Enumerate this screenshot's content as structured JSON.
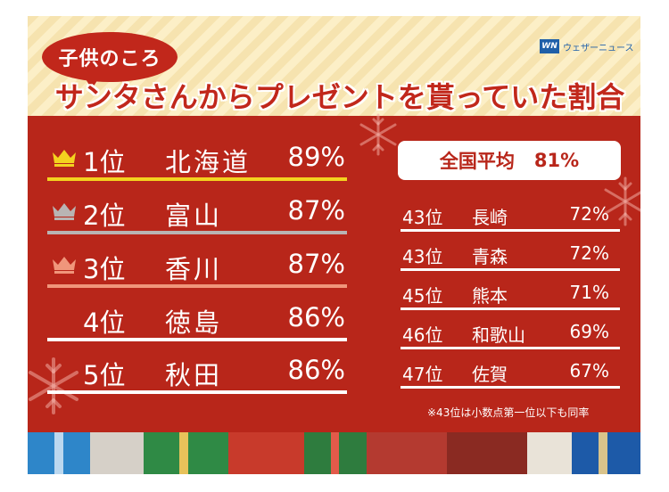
{
  "header": {
    "subtitle": "子供のころ",
    "title": "サンタさんからプレゼントを貰っていた割合",
    "logo_mark": "WN",
    "logo_text": "ウェザーニュース"
  },
  "colors": {
    "background": "#b8261a",
    "header_bg": "#fcefc7",
    "gold": "#f4d21f",
    "silver": "#b9b4b3",
    "bronze": "#f0967b",
    "white": "#ffffff"
  },
  "chart_data": {
    "type": "table",
    "top_ranks": [
      {
        "rank": "1位",
        "prefecture": "北海道",
        "value": "89%",
        "medal": "gold"
      },
      {
        "rank": "2位",
        "prefecture": "富山",
        "value": "87%",
        "medal": "silver"
      },
      {
        "rank": "3位",
        "prefecture": "香川",
        "value": "87%",
        "medal": "bronze"
      },
      {
        "rank": "4位",
        "prefecture": "徳島",
        "value": "86%",
        "medal": ""
      },
      {
        "rank": "5位",
        "prefecture": "秋田",
        "value": "86%",
        "medal": ""
      }
    ],
    "national_average": {
      "label": "全国平均",
      "value": "81%"
    },
    "bottom_ranks": [
      {
        "rank": "43位",
        "prefecture": "長崎",
        "value": "72%"
      },
      {
        "rank": "43位",
        "prefecture": "青森",
        "value": "72%"
      },
      {
        "rank": "45位",
        "prefecture": "熊本",
        "value": "71%"
      },
      {
        "rank": "46位",
        "prefecture": "和歌山",
        "value": "69%"
      },
      {
        "rank": "47位",
        "prefecture": "佐賀",
        "value": "67%"
      }
    ],
    "footnote": "※43位は小数点第一位以下も同率"
  }
}
